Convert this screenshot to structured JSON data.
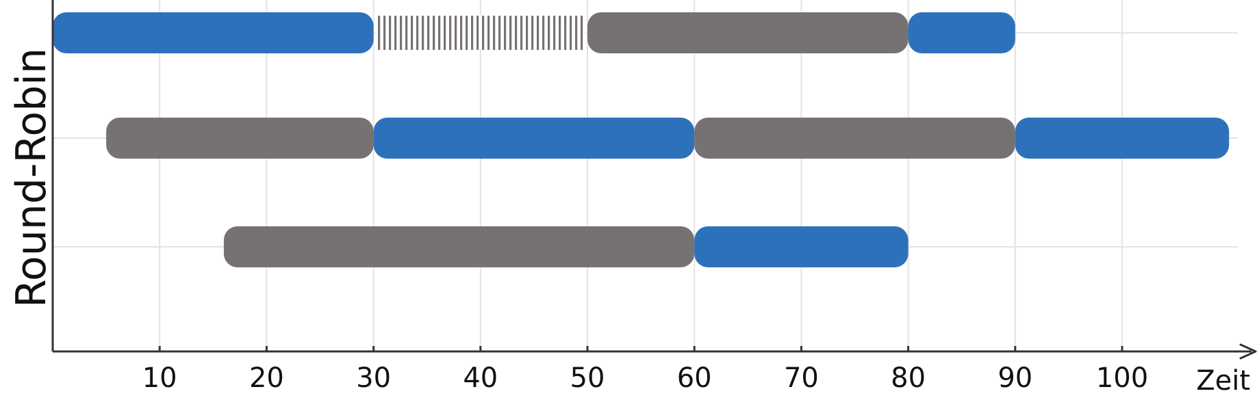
{
  "chart_data": {
    "type": "gantt",
    "title": "",
    "ylabel": "Round-Robin",
    "xlabel": "Zeit",
    "xlim": [
      0,
      110
    ],
    "xticks": [
      10,
      20,
      30,
      40,
      50,
      60,
      70,
      80,
      90,
      100
    ],
    "grid": true,
    "colors": {
      "running": "#2e71bb",
      "ready": "#767271",
      "blocked": "#767271",
      "axis": "#333333",
      "grid": "#e3e3e3"
    },
    "rows": [
      {
        "segments": [
          {
            "start": 0,
            "end": 30,
            "state": "running"
          },
          {
            "start": 30,
            "end": 50,
            "state": "blocked"
          },
          {
            "start": 50,
            "end": 80,
            "state": "ready"
          },
          {
            "start": 80,
            "end": 90,
            "state": "running"
          }
        ]
      },
      {
        "segments": [
          {
            "start": 5,
            "end": 30,
            "state": "ready"
          },
          {
            "start": 30,
            "end": 60,
            "state": "running"
          },
          {
            "start": 60,
            "end": 90,
            "state": "ready"
          },
          {
            "start": 90,
            "end": 110,
            "state": "running"
          }
        ]
      },
      {
        "segments": [
          {
            "start": 16,
            "end": 60,
            "state": "ready"
          },
          {
            "start": 60,
            "end": 80,
            "state": "running"
          }
        ]
      }
    ]
  }
}
